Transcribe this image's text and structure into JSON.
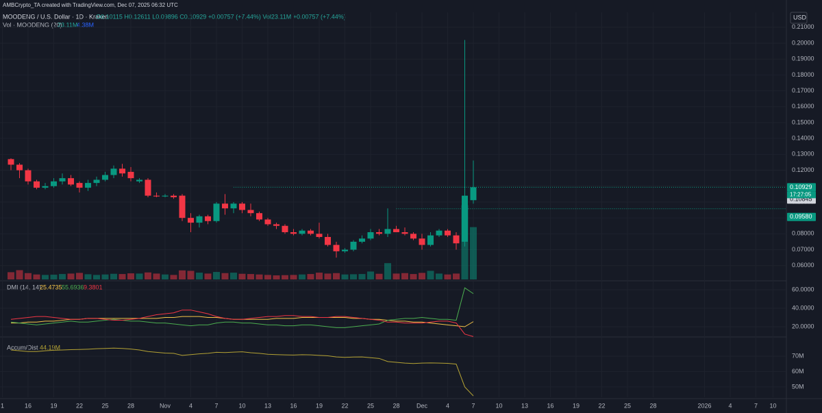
{
  "header": {
    "credit": "AMBCrypto_TA created with TradingView.com, Dec 07, 2025 06:32 UTC",
    "symbol": "MOODENG / U.S. Dollar · 1D · Kraken",
    "ohlc_line": "O0.10115 H0.12611 L0.09896 C0.10929 +0.00757 (+7.44%) Vol23.11M +0.00757 (+7.44%)",
    "currency": "USD"
  },
  "chart_data": [
    {
      "type": "candlestick",
      "up_color": "#089981",
      "down_color": "#f23645",
      "open": [
        0.127,
        0.1235,
        0.12,
        0.113,
        0.109,
        0.11,
        0.113,
        0.115,
        0.112,
        0.109,
        0.112,
        0.114,
        0.117,
        0.121,
        0.119,
        0.113,
        0.114,
        0.104,
        0.1035,
        0.104,
        0.104,
        0.09,
        0.087,
        0.091,
        0.088,
        0.099,
        0.096,
        0.099,
        0.095,
        0.093,
        0.089,
        0.086,
        0.085,
        0.081,
        0.08,
        0.082,
        0.08,
        0.078,
        0.073,
        0.069,
        0.07,
        0.075,
        0.077,
        0.081,
        0.08,
        0.083,
        0.081,
        0.08,
        0.077,
        0.073,
        0.079,
        0.082,
        0.079,
        0.075,
        0.10115
      ],
      "high": [
        0.1275,
        0.1245,
        0.121,
        0.114,
        0.112,
        0.115,
        0.118,
        0.117,
        0.113,
        0.114,
        0.116,
        0.119,
        0.123,
        0.124,
        0.122,
        0.115,
        0.115,
        0.106,
        0.105,
        0.105,
        0.105,
        0.093,
        0.092,
        0.092,
        0.1,
        0.105,
        0.1,
        0.1,
        0.099,
        0.094,
        0.09,
        0.087,
        0.086,
        0.083,
        0.083,
        0.083,
        0.087,
        0.08,
        0.075,
        0.071,
        0.076,
        0.079,
        0.083,
        0.083,
        0.096,
        0.085,
        0.084,
        0.081,
        0.08,
        0.081,
        0.083,
        0.083,
        0.081,
        0.202,
        0.12611
      ],
      "low": [
        0.12,
        0.115,
        0.111,
        0.108,
        0.108,
        0.109,
        0.111,
        0.11,
        0.106,
        0.107,
        0.11,
        0.113,
        0.115,
        0.116,
        0.113,
        0.112,
        0.103,
        0.103,
        0.103,
        0.102,
        0.088,
        0.081,
        0.084,
        0.086,
        0.087,
        0.092,
        0.093,
        0.093,
        0.091,
        0.088,
        0.085,
        0.083,
        0.08,
        0.079,
        0.079,
        0.079,
        0.077,
        0.072,
        0.065,
        0.068,
        0.069,
        0.074,
        0.076,
        0.079,
        0.078,
        0.081,
        0.079,
        0.076,
        0.07,
        0.072,
        0.078,
        0.078,
        0.07,
        0.072,
        0.09896
      ],
      "close": [
        0.1235,
        0.12,
        0.113,
        0.109,
        0.11,
        0.113,
        0.115,
        0.111,
        0.109,
        0.112,
        0.114,
        0.117,
        0.121,
        0.118,
        0.115,
        0.114,
        0.104,
        0.1035,
        0.104,
        0.103,
        0.09,
        0.087,
        0.091,
        0.088,
        0.099,
        0.096,
        0.099,
        0.095,
        0.093,
        0.089,
        0.086,
        0.085,
        0.081,
        0.08,
        0.082,
        0.08,
        0.078,
        0.073,
        0.069,
        0.07,
        0.075,
        0.077,
        0.081,
        0.08,
        0.083,
        0.081,
        0.08,
        0.077,
        0.073,
        0.079,
        0.082,
        0.079,
        0.074,
        0.104,
        0.10929
      ],
      "volume": [
        3.2,
        4.1,
        2.8,
        2.2,
        2.0,
        2.1,
        2.4,
        2.6,
        2.9,
        2.3,
        2.0,
        2.2,
        2.5,
        2.4,
        2.7,
        2.6,
        3.1,
        2.6,
        2.2,
        2.0,
        4.0,
        3.8,
        3.0,
        2.6,
        3.3,
        2.8,
        3.0,
        2.5,
        2.4,
        2.2,
        2.0,
        1.8,
        1.9,
        2.0,
        2.2,
        2.4,
        3.0,
        2.6,
        2.8,
        2.2,
        2.3,
        2.4,
        3.5,
        2.5,
        7.2,
        2.6,
        2.8,
        2.4,
        2.9,
        3.8,
        2.6,
        2.2,
        2.6,
        32.8,
        23.11
      ],
      "volume_ylim": [
        0,
        118
      ],
      "volume_title": "Vol · MOODENG (20)",
      "volume_labels": [
        "23.11M",
        "4.38M"
      ],
      "ylim": [
        0.0504,
        0.2194
      ],
      "yticks": [
        {
          "value": 0.06,
          "label": "0.06000"
        },
        {
          "value": 0.07,
          "label": "0.07000"
        },
        {
          "value": 0.08,
          "label": "0.08000"
        },
        {
          "value": 0.09,
          "label": "0.09000"
        },
        {
          "value": 0.1,
          "label": "0.10000"
        },
        {
          "value": 0.11,
          "label": "0.11000"
        },
        {
          "value": 0.12,
          "label": "0.12000"
        },
        {
          "value": 0.13,
          "label": "0.13000"
        },
        {
          "value": 0.14,
          "label": "0.14000"
        },
        {
          "value": 0.15,
          "label": "0.15000"
        },
        {
          "value": 0.16,
          "label": "0.16000"
        },
        {
          "value": 0.17,
          "label": "0.17000"
        },
        {
          "value": 0.18,
          "label": "0.18000"
        },
        {
          "value": 0.19,
          "label": "0.19000"
        },
        {
          "value": 0.2,
          "label": "0.20000"
        },
        {
          "value": 0.21,
          "label": "0.21000"
        }
      ],
      "price_labels": [
        {
          "value": 0.10929,
          "label": "0.10929",
          "color": "#089981"
        },
        {
          "value": 0.10845,
          "label": "0.10845",
          "color": "#d1d4dc"
        },
        {
          "value": 0.0958,
          "label": "0.09580",
          "color": "#089981"
        }
      ],
      "countdown": "17:27:05",
      "xlim": [
        -1.28,
        90.56
      ],
      "xticks": [
        {
          "value": -1,
          "label": "1"
        },
        {
          "value": 2,
          "label": "16"
        },
        {
          "value": 5,
          "label": "19"
        },
        {
          "value": 8,
          "label": "22"
        },
        {
          "value": 11,
          "label": "25"
        },
        {
          "value": 14,
          "label": "28"
        },
        {
          "value": 18,
          "label": "Nov"
        },
        {
          "value": 21,
          "label": "4"
        },
        {
          "value": 24,
          "label": "7"
        },
        {
          "value": 27,
          "label": "10"
        },
        {
          "value": 30,
          "label": "13"
        },
        {
          "value": 33,
          "label": "16"
        },
        {
          "value": 36,
          "label": "19"
        },
        {
          "value": 39,
          "label": "22"
        },
        {
          "value": 42,
          "label": "25"
        },
        {
          "value": 45,
          "label": "28"
        },
        {
          "value": 48,
          "label": "Dec"
        },
        {
          "value": 51,
          "label": "4"
        },
        {
          "value": 54,
          "label": "7"
        },
        {
          "value": 57,
          "label": "10"
        },
        {
          "value": 60,
          "label": "13"
        },
        {
          "value": 63,
          "label": "16"
        },
        {
          "value": 66,
          "label": "19"
        },
        {
          "value": 69,
          "label": "22"
        },
        {
          "value": 72,
          "label": "25"
        },
        {
          "value": 75,
          "label": "28"
        },
        {
          "value": 81,
          "label": "2026"
        },
        {
          "value": 84,
          "label": "4"
        },
        {
          "value": 87,
          "label": "7"
        },
        {
          "value": 89,
          "label": "10"
        }
      ]
    },
    {
      "type": "line",
      "title": "DMI (14, 14)",
      "ylim": [
        10.4,
        68.1
      ],
      "yticks": [
        {
          "value": 20,
          "label": "20.0000"
        },
        {
          "value": 40,
          "label": "40.0000"
        },
        {
          "value": 60,
          "label": "60.0000"
        }
      ],
      "series": [
        {
          "color": "#f7c548",
          "values": [
            24,
            24,
            25,
            25,
            26,
            26,
            27,
            28,
            28,
            29,
            29,
            29,
            29,
            29,
            29,
            29,
            29,
            29,
            30,
            30,
            31,
            31,
            31,
            30,
            30,
            29,
            28,
            28,
            28,
            28,
            28,
            29,
            29,
            29,
            30,
            30,
            30,
            30,
            30,
            30,
            29,
            29,
            28,
            28,
            27,
            26,
            26,
            25,
            25,
            24,
            23,
            22,
            21,
            20,
            25.4735
          ]
        },
        {
          "color": "#4caf50",
          "values": [
            25,
            24,
            23,
            22,
            23,
            24,
            25,
            26,
            25,
            25,
            26,
            27,
            28,
            27,
            26,
            26,
            25,
            24,
            24,
            23,
            22,
            21,
            22,
            22,
            24,
            25,
            25,
            24,
            24,
            23,
            22,
            22,
            21,
            21,
            22,
            22,
            21,
            20,
            19,
            19,
            20,
            21,
            22,
            23,
            27,
            28,
            29,
            29,
            30,
            29,
            28,
            28,
            27,
            62,
            55.6936
          ]
        },
        {
          "color": "#f23645",
          "values": [
            28,
            29,
            30,
            31,
            31,
            30,
            29,
            28,
            28,
            29,
            29,
            28,
            27,
            27,
            28,
            29,
            31,
            33,
            34,
            35,
            38,
            38,
            36,
            34,
            31,
            29,
            28,
            28,
            29,
            30,
            31,
            31,
            32,
            32,
            31,
            31,
            30,
            30,
            31,
            31,
            30,
            29,
            28,
            27,
            25,
            25,
            24,
            24,
            24,
            25,
            26,
            26,
            24,
            12,
            9.3801
          ]
        }
      ]
    },
    {
      "type": "line",
      "title": "Accum/Dist",
      "value_label": "44.19M",
      "ylim": [
        43.3,
        81.1
      ],
      "yticks": [
        {
          "value": 50,
          "label": "50M"
        },
        {
          "value": 60,
          "label": "60M"
        },
        {
          "value": 70,
          "label": "70M"
        }
      ],
      "series": [
        {
          "color": "#b5a334",
          "values": [
            74,
            73.5,
            73,
            73,
            73.5,
            73.8,
            74,
            74.2,
            74.3,
            74.5,
            74.8,
            75,
            75.2,
            75,
            74.6,
            74,
            73,
            72.5,
            72,
            71.8,
            70.5,
            71,
            71.5,
            71.8,
            72.5,
            72.3,
            72.6,
            72.8,
            72.2,
            71.8,
            71.2,
            71,
            70.8,
            70.7,
            70.9,
            70.8,
            70.5,
            70.2,
            69.5,
            69.2,
            69.4,
            69.5,
            69,
            68.5,
            66.5,
            66,
            65.5,
            65.2,
            65.5,
            65.6,
            65.5,
            65.3,
            64.8,
            50,
            44.19
          ]
        }
      ]
    }
  ]
}
